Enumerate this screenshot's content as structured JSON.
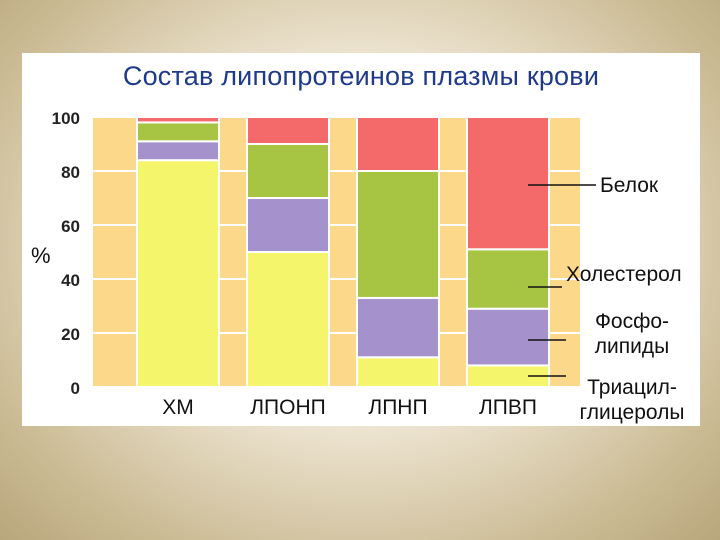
{
  "title": "Состав липопротеинов плазмы крови",
  "chart_data": {
    "type": "bar",
    "stacked": true,
    "unit_label": "%",
    "ylim": [
      0,
      100
    ],
    "y_ticks": [
      "0",
      "20",
      "40",
      "60",
      "80",
      "100"
    ],
    "categories": [
      "ХМ",
      "ЛПОНП",
      "ЛПНП",
      "ЛПВП"
    ],
    "series": [
      {
        "name": "Триацилглицеролы",
        "label_lines": [
          "Триацил-",
          "глицеролы"
        ],
        "color": "#f4f56a",
        "values": [
          84,
          50,
          11,
          8
        ]
      },
      {
        "name": "Фосфолипиды",
        "label_lines": [
          "Фосфо-",
          "липиды"
        ],
        "color": "#a592cc",
        "values": [
          7,
          20,
          22,
          21
        ]
      },
      {
        "name": "Холестерол",
        "label_lines": [
          "Холестерол"
        ],
        "color": "#a8c443",
        "values": [
          7,
          20,
          47,
          22
        ]
      },
      {
        "name": "Белок",
        "label_lines": [
          "Белок"
        ],
        "color": "#f46a6a",
        "values": [
          2,
          10,
          20,
          49
        ]
      }
    ],
    "colors": {
      "background_stripe": "#fcd98a",
      "grid": "#ffffff"
    }
  }
}
